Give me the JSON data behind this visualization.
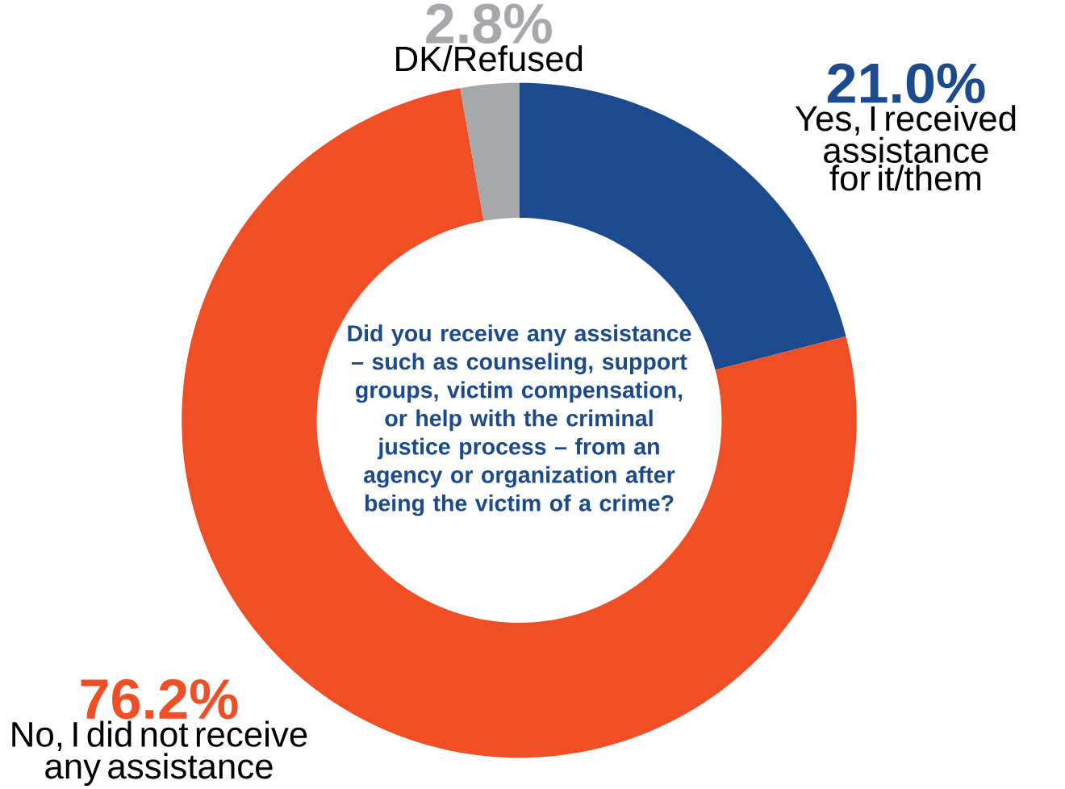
{
  "chart_data": {
    "type": "donut",
    "title": "Did you receive any assistance – such as counseling, support groups, victim compensation, or help with the criminal justice process – from an agency or organization after being the victim of a crime?",
    "categories": [
      "Yes, I received assistance for it/them",
      "No, I did not receive any assistance",
      "DK/Refused"
    ],
    "values": [
      21.0,
      76.2,
      2.8
    ],
    "value_labels": [
      "21.0%",
      "76.2%",
      "2.8%"
    ],
    "colors": [
      "#1b4a8f",
      "#f04e25",
      "#a6a8ab"
    ]
  }
}
